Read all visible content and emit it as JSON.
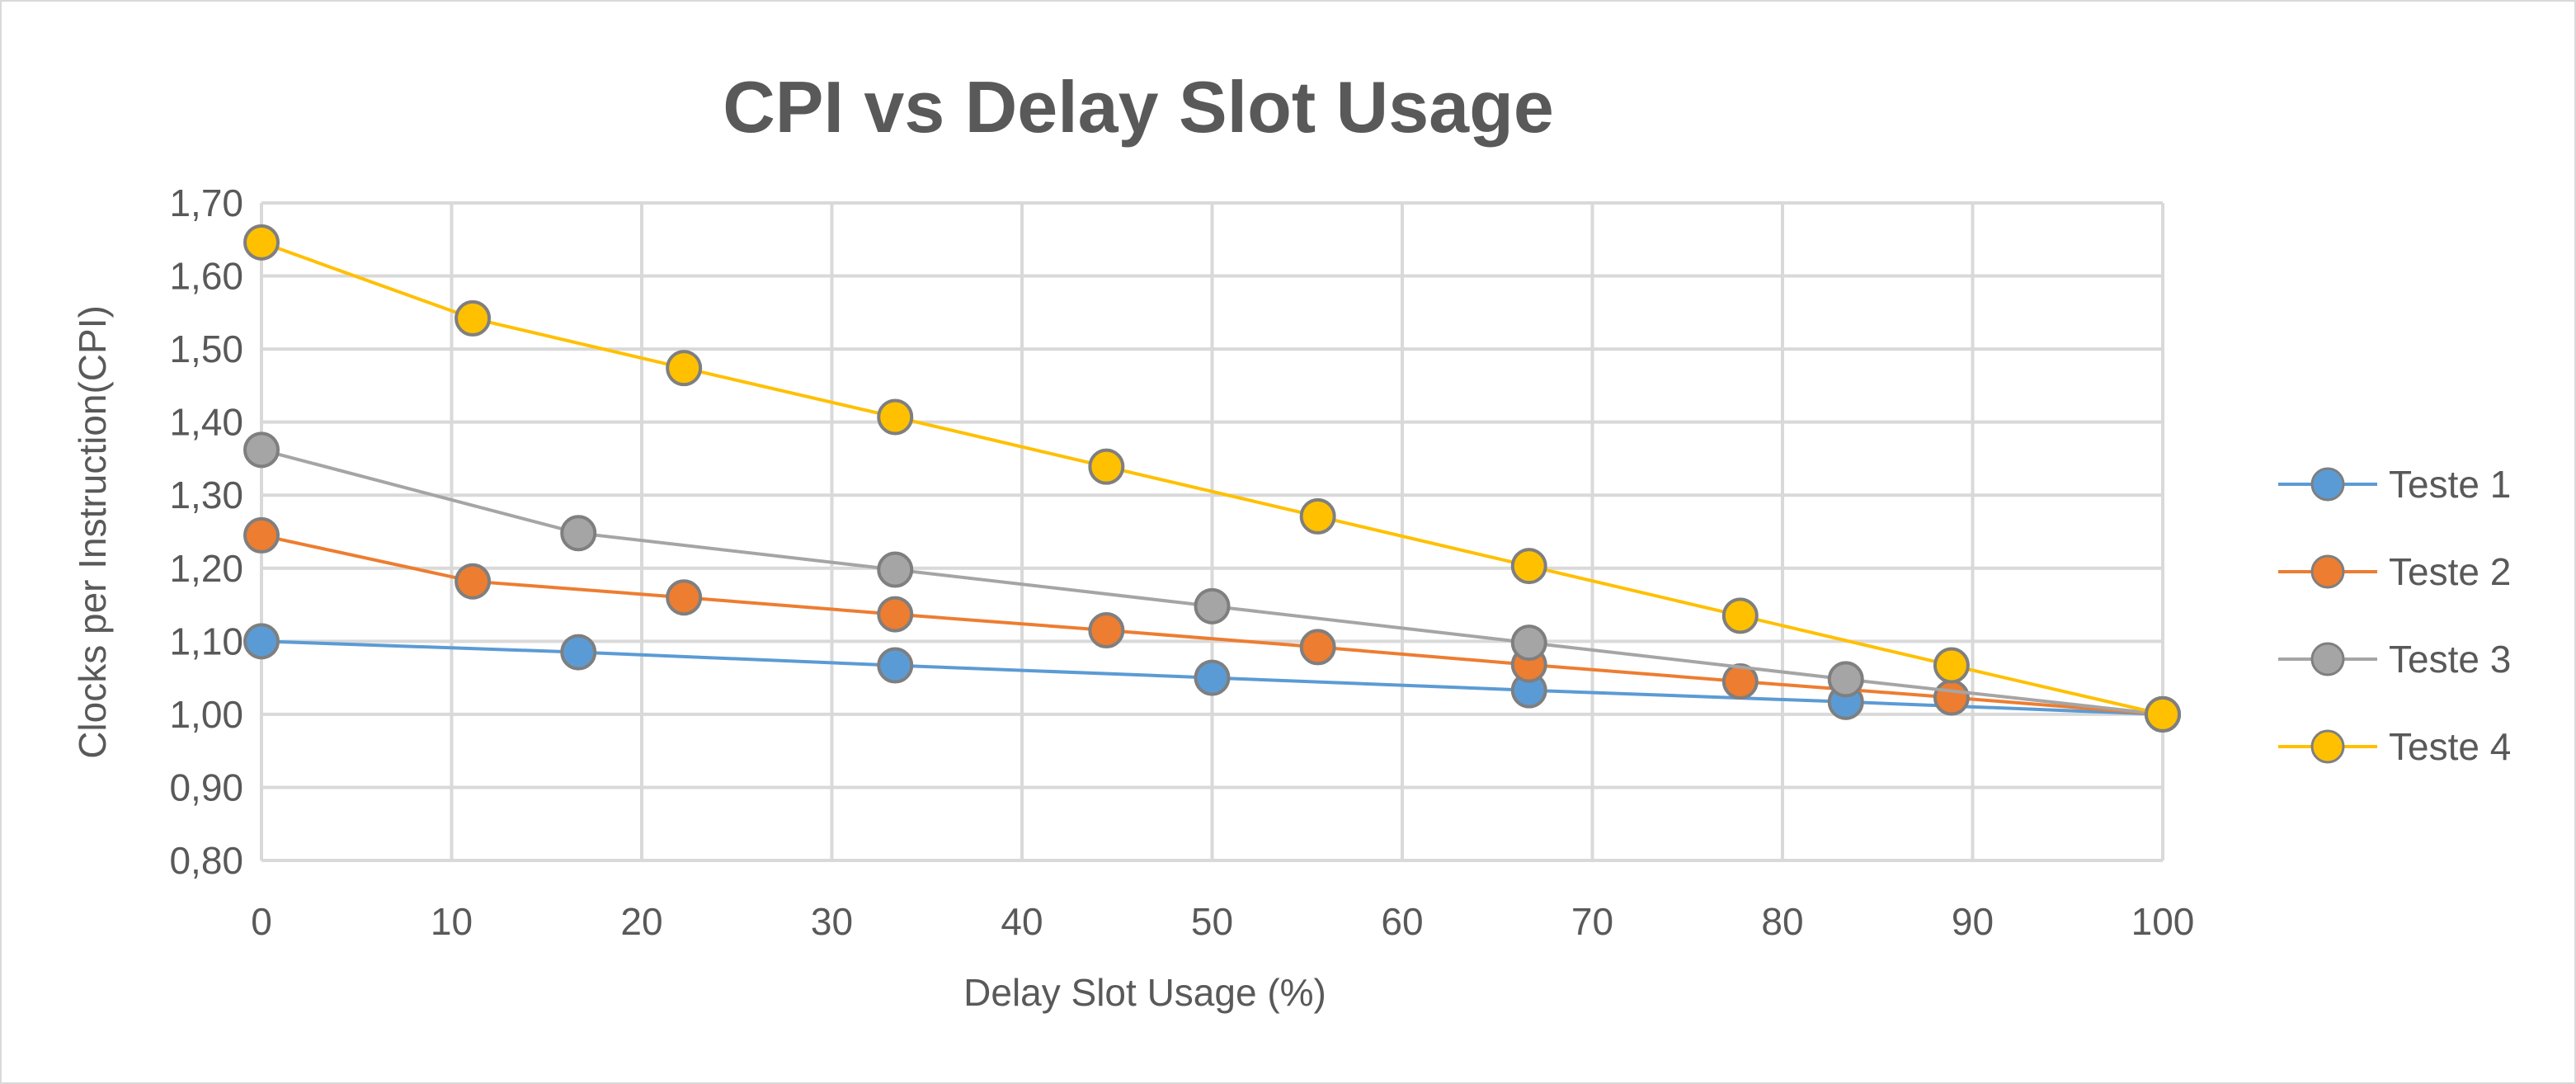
{
  "chart_data": {
    "type": "scatter",
    "title": "CPI vs Delay Slot Usage",
    "xlabel": "Delay Slot Usage (%)",
    "ylabel": "Clocks per Instruction(CPI)",
    "xlim": [
      0,
      100
    ],
    "ylim": [
      0.8,
      1.7
    ],
    "x_ticks": [
      "0",
      "10",
      "20",
      "30",
      "40",
      "50",
      "60",
      "70",
      "80",
      "90",
      "100"
    ],
    "y_ticks": [
      "0,80",
      "0,90",
      "1,00",
      "1,10",
      "1,20",
      "1,30",
      "1,40",
      "1,50",
      "1,60",
      "1,70"
    ],
    "grid": true,
    "legend_position": "right",
    "series": [
      {
        "name": "Teste 1",
        "color": "#5b9bd5",
        "x": [
          0,
          16.67,
          33.33,
          50,
          66.67,
          83.33,
          100
        ],
        "y": [
          1.1,
          1.085,
          1.067,
          1.05,
          1.033,
          1.017,
          1.0
        ]
      },
      {
        "name": "Teste 2",
        "color": "#ed7d31",
        "x": [
          0,
          11.11,
          22.22,
          33.33,
          44.44,
          55.56,
          66.67,
          77.78,
          88.89,
          100
        ],
        "y": [
          1.245,
          1.182,
          1.16,
          1.137,
          1.115,
          1.092,
          1.068,
          1.045,
          1.023,
          1.0
        ]
      },
      {
        "name": "Teste 3",
        "color": "#a5a5a5",
        "x": [
          0,
          16.67,
          33.33,
          50,
          66.67,
          83.33,
          100
        ],
        "y": [
          1.362,
          1.248,
          1.198,
          1.148,
          1.098,
          1.048,
          1.0
        ]
      },
      {
        "name": "Teste 4",
        "color": "#ffc000",
        "x": [
          0,
          11.11,
          22.22,
          33.33,
          44.44,
          55.56,
          66.67,
          77.78,
          88.89,
          100
        ],
        "y": [
          1.646,
          1.542,
          1.474,
          1.407,
          1.339,
          1.271,
          1.203,
          1.135,
          1.067,
          1.0
        ]
      }
    ]
  }
}
